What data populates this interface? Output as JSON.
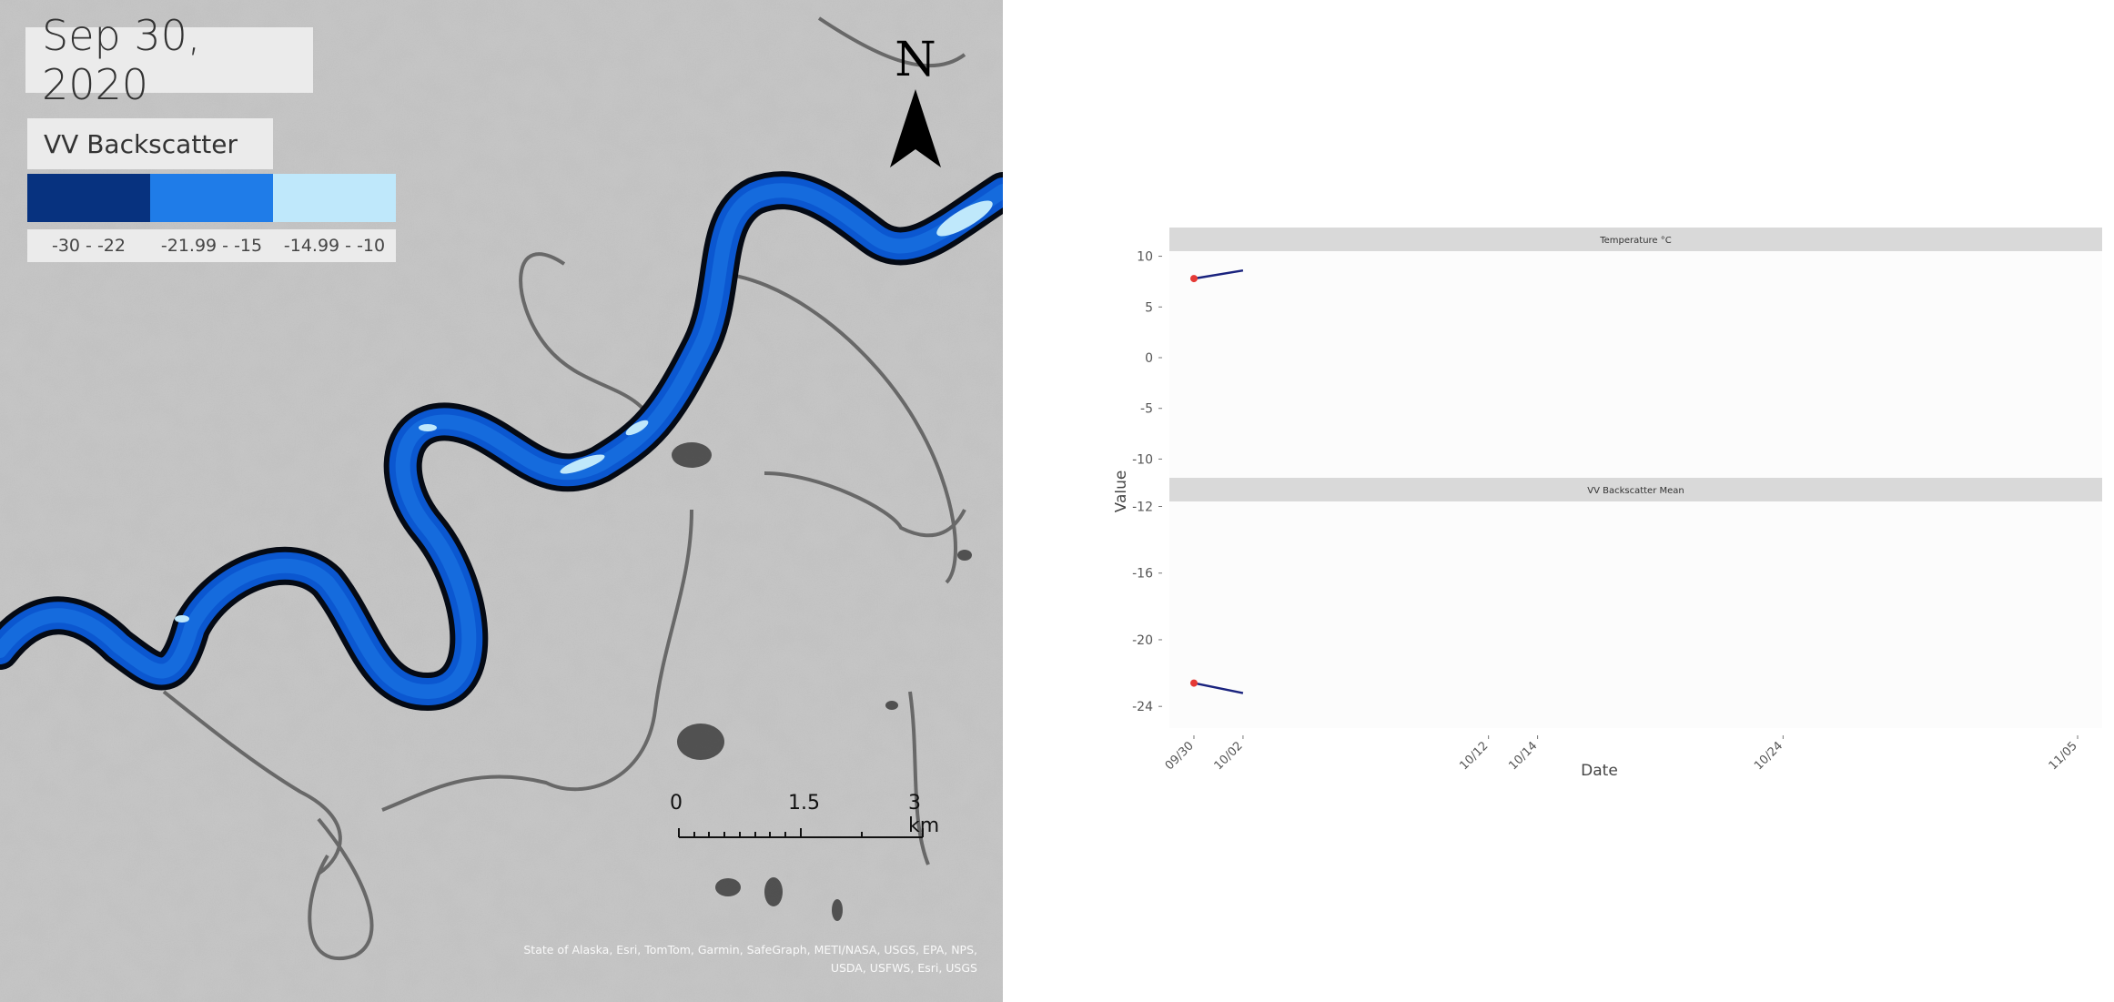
{
  "map": {
    "date": "Sep 30, 2020",
    "legend": {
      "title": "VV Backscatter",
      "classes": [
        {
          "label": "-30 - -22",
          "color": "#07327f"
        },
        {
          "label": "-21.99 - -15",
          "color": "#1f7ce8"
        },
        {
          "label": "-14.99 - -10",
          "color": "#bfe8fb"
        }
      ]
    },
    "north_label": "N",
    "north_icon": "north-arrow-icon",
    "scale": {
      "labels": [
        "0",
        "1.5",
        "3 km"
      ]
    },
    "attribution_lines": [
      "State of Alaska, Esri, TomTom, Garmin, SafeGraph, METI/NASA, USGS, EPA, NPS,",
      "USDA, USFWS, Esri, USGS"
    ]
  },
  "chart_data": {
    "type": "line",
    "facets": [
      {
        "title": "Temperature °C",
        "yticks": [
          10,
          5,
          0,
          -5,
          -10
        ],
        "ylim": [
          -10.5,
          10.5
        ],
        "points": [
          {
            "date": "09/30",
            "y": 7.8
          }
        ],
        "line": [
          {
            "date": "09/30",
            "y": 7.8
          },
          {
            "date": "10/02",
            "y": 8.6
          }
        ]
      },
      {
        "title": "VV Backscatter Mean",
        "yticks": [
          -12,
          -16,
          -20,
          -24
        ],
        "ylim": [
          -25.3,
          -11.7
        ],
        "points": [
          {
            "date": "09/30",
            "y": -22.6
          }
        ],
        "line": [
          {
            "date": "09/30",
            "y": -22.6
          },
          {
            "date": "10/02",
            "y": -23.2
          }
        ]
      }
    ],
    "x_ticks": [
      "09/30",
      "10/02",
      "10/12",
      "10/14",
      "10/24",
      "11/05"
    ],
    "xlabel": "Date",
    "ylabel": "Value",
    "colors": {
      "line": "#1a237e",
      "point": "#e53935",
      "strip": "#d9d9d9"
    }
  }
}
